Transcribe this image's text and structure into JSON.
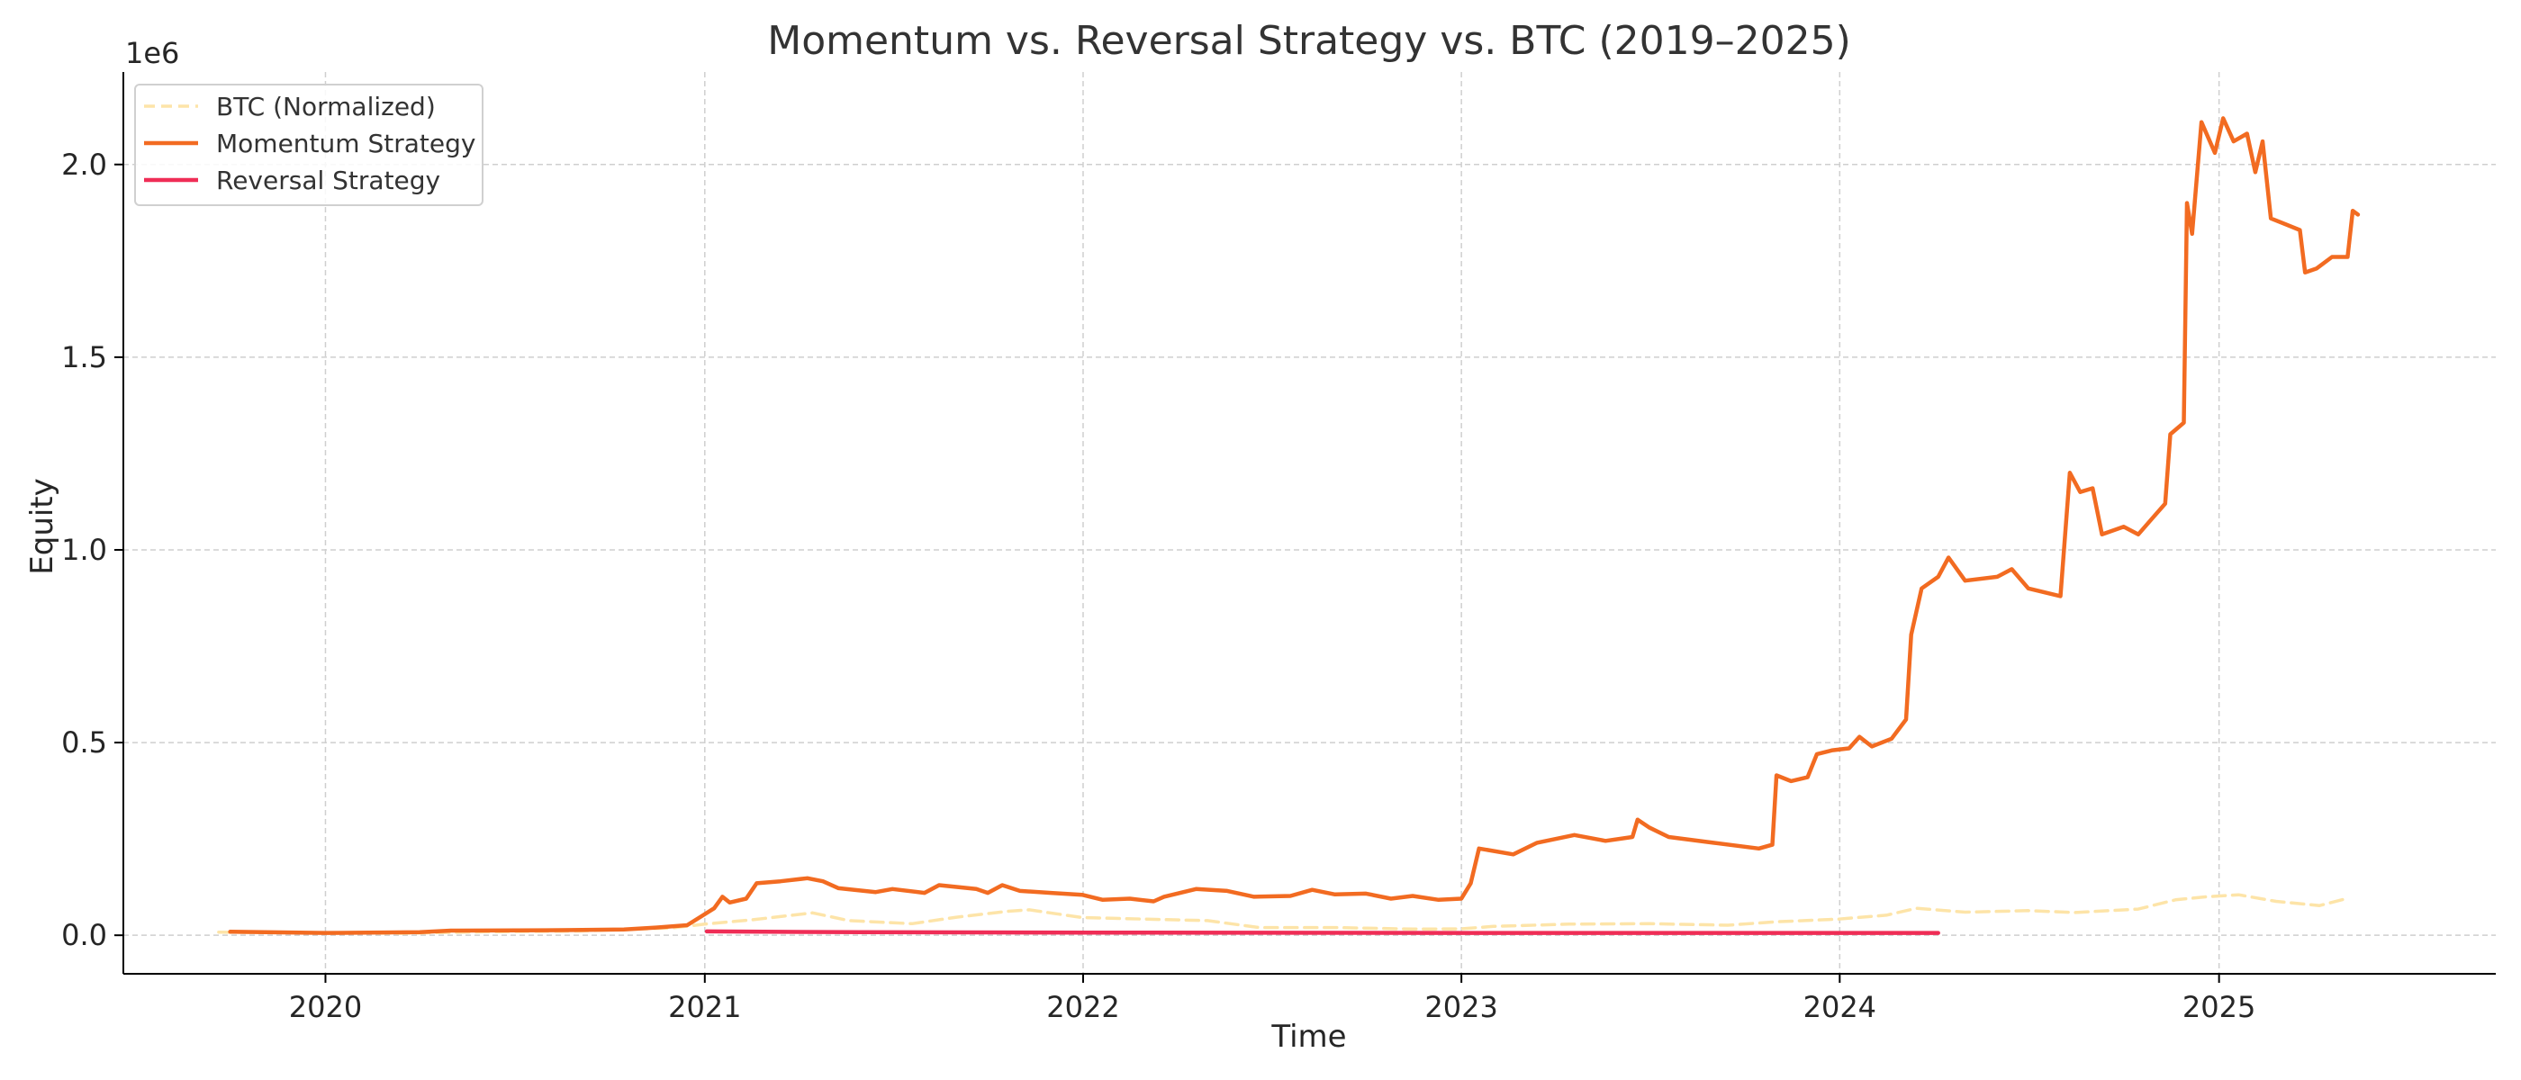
{
  "chart_data": {
    "type": "line",
    "title": "Momentum vs. Reversal Strategy vs. BTC (2019–2025)",
    "xlabel": "Time",
    "ylabel": "Equity",
    "y_offset_label": "1e6",
    "xlim": [
      "2019-06-20",
      "2025-09-25"
    ],
    "ylim": [
      -100000,
      2240000
    ],
    "x_ticks": [
      "2020-01-01",
      "2021-01-01",
      "2022-01-01",
      "2023-01-01",
      "2024-01-01",
      "2025-01-01"
    ],
    "x_tick_labels": [
      "2020",
      "2021",
      "2022",
      "2023",
      "2024",
      "2025"
    ],
    "y_ticks": [
      0,
      500000,
      1000000,
      1500000,
      2000000
    ],
    "y_tick_labels": [
      "0.0",
      "0.5",
      "1.0",
      "1.5",
      "2.0"
    ],
    "grid": true,
    "legend_position": "top-left",
    "series": [
      {
        "name": "BTC (Normalized)",
        "color": "#fde4a8",
        "style": "dashed",
        "points": [
          [
            "2019-09-20",
            8000
          ],
          [
            "2019-12-01",
            7000
          ],
          [
            "2020-03-15",
            5000
          ],
          [
            "2020-06-01",
            9000
          ],
          [
            "2020-09-01",
            11000
          ],
          [
            "2020-12-01",
            19000
          ],
          [
            "2021-01-01",
            29000
          ],
          [
            "2021-02-15",
            40000
          ],
          [
            "2021-04-15",
            58000
          ],
          [
            "2021-05-20",
            38000
          ],
          [
            "2021-07-20",
            30000
          ],
          [
            "2021-09-01",
            47000
          ],
          [
            "2021-10-20",
            62000
          ],
          [
            "2021-11-10",
            66000
          ],
          [
            "2021-12-31",
            46000
          ],
          [
            "2022-03-01",
            42000
          ],
          [
            "2022-05-01",
            38000
          ],
          [
            "2022-06-20",
            20000
          ],
          [
            "2022-09-01",
            20000
          ],
          [
            "2022-11-15",
            16000
          ],
          [
            "2022-12-31",
            16500
          ],
          [
            "2023-02-01",
            23000
          ],
          [
            "2023-04-15",
            29000
          ],
          [
            "2023-07-01",
            30000
          ],
          [
            "2023-09-15",
            26000
          ],
          [
            "2023-11-01",
            35000
          ],
          [
            "2023-12-31",
            42000
          ],
          [
            "2024-02-15",
            52000
          ],
          [
            "2024-03-15",
            70000
          ],
          [
            "2024-05-01",
            60000
          ],
          [
            "2024-07-01",
            64000
          ],
          [
            "2024-08-15",
            59000
          ],
          [
            "2024-10-15",
            68000
          ],
          [
            "2024-11-20",
            92000
          ],
          [
            "2024-12-20",
            100000
          ],
          [
            "2025-01-20",
            105000
          ],
          [
            "2025-02-25",
            88000
          ],
          [
            "2025-04-08",
            77000
          ],
          [
            "2025-05-05",
            96000
          ]
        ]
      },
      {
        "name": "Momentum Strategy",
        "color": "#f26b21",
        "style": "solid",
        "points": [
          [
            "2019-10-01",
            9000
          ],
          [
            "2020-01-01",
            6000
          ],
          [
            "2020-04-01",
            8000
          ],
          [
            "2020-05-01",
            12000
          ],
          [
            "2020-08-01",
            13000
          ],
          [
            "2020-10-15",
            15000
          ],
          [
            "2020-11-15",
            20000
          ],
          [
            "2020-12-15",
            26000
          ],
          [
            "2020-12-28",
            48000
          ],
          [
            "2021-01-10",
            70000
          ],
          [
            "2021-01-18",
            100000
          ],
          [
            "2021-01-25",
            85000
          ],
          [
            "2021-02-10",
            95000
          ],
          [
            "2021-02-20",
            135000
          ],
          [
            "2021-03-15",
            140000
          ],
          [
            "2021-04-10",
            148000
          ],
          [
            "2021-04-25",
            140000
          ],
          [
            "2021-05-10",
            122000
          ],
          [
            "2021-06-15",
            112000
          ],
          [
            "2021-07-01",
            120000
          ],
          [
            "2021-08-01",
            110000
          ],
          [
            "2021-08-15",
            130000
          ],
          [
            "2021-09-20",
            120000
          ],
          [
            "2021-10-01",
            110000
          ],
          [
            "2021-10-15",
            130000
          ],
          [
            "2021-11-01",
            115000
          ],
          [
            "2021-12-01",
            110000
          ],
          [
            "2021-12-31",
            105000
          ],
          [
            "2022-01-20",
            92000
          ],
          [
            "2022-02-15",
            95000
          ],
          [
            "2022-03-10",
            88000
          ],
          [
            "2022-03-20",
            100000
          ],
          [
            "2022-04-20",
            120000
          ],
          [
            "2022-05-20",
            115000
          ],
          [
            "2022-06-15",
            100000
          ],
          [
            "2022-07-20",
            102000
          ],
          [
            "2022-08-10",
            118000
          ],
          [
            "2022-09-01",
            106000
          ],
          [
            "2022-10-01",
            108000
          ],
          [
            "2022-10-25",
            95000
          ],
          [
            "2022-11-15",
            102000
          ],
          [
            "2022-12-10",
            92000
          ],
          [
            "2023-01-01",
            95000
          ],
          [
            "2023-01-10",
            135000
          ],
          [
            "2023-01-18",
            225000
          ],
          [
            "2023-02-20",
            210000
          ],
          [
            "2023-03-15",
            240000
          ],
          [
            "2023-04-20",
            260000
          ],
          [
            "2023-05-20",
            245000
          ],
          [
            "2023-06-15",
            255000
          ],
          [
            "2023-06-20",
            300000
          ],
          [
            "2023-07-01",
            280000
          ],
          [
            "2023-07-20",
            255000
          ],
          [
            "2023-09-01",
            240000
          ],
          [
            "2023-10-15",
            225000
          ],
          [
            "2023-10-28",
            235000
          ],
          [
            "2023-11-01",
            415000
          ],
          [
            "2023-11-15",
            400000
          ],
          [
            "2023-12-01",
            410000
          ],
          [
            "2023-12-10",
            470000
          ],
          [
            "2023-12-25",
            480000
          ],
          [
            "2024-01-10",
            485000
          ],
          [
            "2024-01-20",
            515000
          ],
          [
            "2024-02-01",
            490000
          ],
          [
            "2024-02-20",
            510000
          ],
          [
            "2024-03-05",
            560000
          ],
          [
            "2024-03-10",
            780000
          ],
          [
            "2024-03-20",
            900000
          ],
          [
            "2024-04-05",
            930000
          ],
          [
            "2024-04-15",
            980000
          ],
          [
            "2024-05-01",
            920000
          ],
          [
            "2024-06-01",
            930000
          ],
          [
            "2024-06-15",
            950000
          ],
          [
            "2024-07-01",
            900000
          ],
          [
            "2024-08-01",
            880000
          ],
          [
            "2024-08-10",
            1200000
          ],
          [
            "2024-08-20",
            1150000
          ],
          [
            "2024-09-01",
            1160000
          ],
          [
            "2024-09-10",
            1040000
          ],
          [
            "2024-10-01",
            1060000
          ],
          [
            "2024-10-15",
            1040000
          ],
          [
            "2024-10-28",
            1080000
          ],
          [
            "2024-11-10",
            1120000
          ],
          [
            "2024-11-15",
            1300000
          ],
          [
            "2024-11-28",
            1330000
          ],
          [
            "2024-12-01",
            1900000
          ],
          [
            "2024-12-06",
            1820000
          ],
          [
            "2024-12-15",
            2110000
          ],
          [
            "2024-12-28",
            2030000
          ],
          [
            "2025-01-05",
            2120000
          ],
          [
            "2025-01-15",
            2060000
          ],
          [
            "2025-01-28",
            2080000
          ],
          [
            "2025-02-05",
            1980000
          ],
          [
            "2025-02-12",
            2060000
          ],
          [
            "2025-02-20",
            1860000
          ],
          [
            "2025-03-20",
            1830000
          ],
          [
            "2025-03-25",
            1720000
          ],
          [
            "2025-04-05",
            1730000
          ],
          [
            "2025-04-20",
            1760000
          ],
          [
            "2025-05-05",
            1760000
          ],
          [
            "2025-05-10",
            1880000
          ],
          [
            "2025-05-15",
            1870000
          ]
        ]
      },
      {
        "name": "Reversal Strategy",
        "color": "#ef2d56",
        "style": "solid",
        "points": [
          [
            "2021-01-03",
            10000
          ],
          [
            "2021-06-01",
            8000
          ],
          [
            "2022-01-01",
            7000
          ],
          [
            "2023-01-01",
            6000
          ],
          [
            "2024-01-01",
            6000
          ],
          [
            "2024-04-05",
            6000
          ]
        ]
      }
    ]
  }
}
